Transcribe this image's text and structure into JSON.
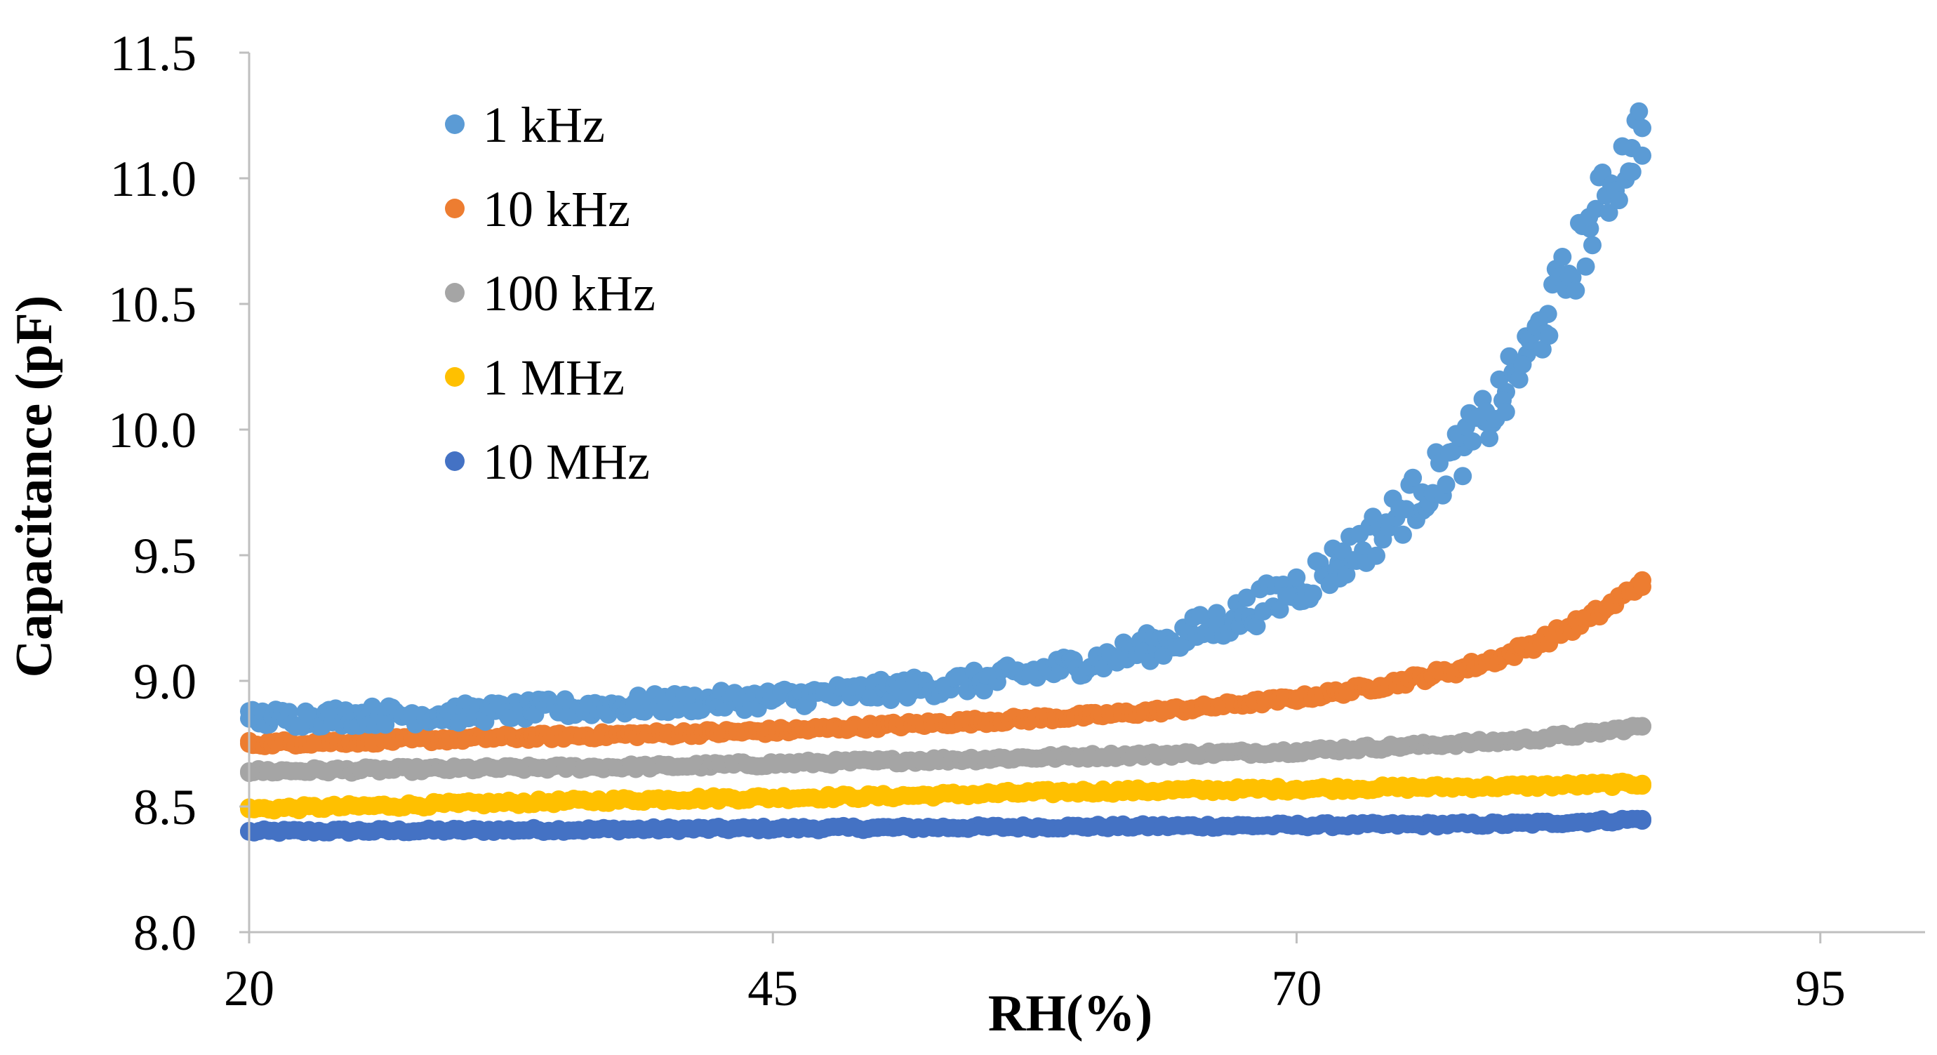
{
  "chart_data": {
    "type": "scatter",
    "title": "",
    "xlabel": "RH(%)",
    "ylabel": "Capacitance (pF)",
    "xlim": [
      20,
      100
    ],
    "ylim": [
      8.0,
      11.5
    ],
    "x_ticks": [
      20,
      45,
      70,
      95
    ],
    "x_tick_labels": [
      "20",
      "45",
      "70",
      "95"
    ],
    "y_ticks": [
      8.0,
      8.5,
      9.0,
      9.5,
      10.0,
      10.5,
      11.0,
      11.5
    ],
    "y_tick_labels": [
      "8.0",
      "8.5",
      "9.0",
      "9.5",
      "10.0",
      "10.5",
      "11.0",
      "11.5"
    ],
    "grid": false,
    "legend_position": "top-left",
    "series": [
      {
        "name": "1 kHz",
        "color": "#5B9BD5",
        "x": [
          20,
          25,
          30,
          35,
          40,
          45,
          50,
          55,
          58,
          61,
          64,
          67,
          70,
          72,
          74,
          76,
          78,
          79,
          80,
          81,
          82,
          83,
          84,
          85,
          86,
          86.5
        ],
        "y": [
          8.85,
          8.86,
          8.87,
          8.89,
          8.91,
          8.93,
          8.96,
          9.0,
          9.04,
          9.09,
          9.16,
          9.25,
          9.37,
          9.47,
          9.6,
          9.75,
          9.93,
          10.03,
          10.15,
          10.3,
          10.46,
          10.62,
          10.8,
          10.98,
          11.12,
          11.2
        ]
      },
      {
        "name": "10 kHz",
        "color": "#ED7D31",
        "x": [
          20,
          25,
          30,
          35,
          40,
          45,
          50,
          55,
          60,
          65,
          70,
          74,
          78,
          80,
          82,
          84,
          85,
          86,
          86.5
        ],
        "y": [
          8.75,
          8.76,
          8.77,
          8.78,
          8.79,
          8.8,
          8.82,
          8.84,
          8.86,
          8.89,
          8.93,
          8.98,
          9.05,
          9.1,
          9.17,
          9.25,
          9.3,
          9.36,
          9.4
        ]
      },
      {
        "name": "100 kHz",
        "color": "#A5A5A5",
        "x": [
          20,
          30,
          40,
          50,
          60,
          70,
          75,
          80,
          84,
          86.5
        ],
        "y": [
          8.64,
          8.65,
          8.66,
          8.68,
          8.7,
          8.72,
          8.74,
          8.76,
          8.79,
          8.82
        ]
      },
      {
        "name": "1 MHz",
        "color": "#FFC000",
        "x": [
          20,
          30,
          40,
          50,
          60,
          70,
          80,
          86.5
        ],
        "y": [
          8.49,
          8.51,
          8.53,
          8.54,
          8.56,
          8.57,
          8.58,
          8.59
        ]
      },
      {
        "name": "10 MHz",
        "color": "#4472C4",
        "x": [
          20,
          30,
          40,
          50,
          60,
          70,
          80,
          84,
          86.5
        ],
        "y": [
          8.4,
          8.405,
          8.41,
          8.415,
          8.42,
          8.425,
          8.43,
          8.44,
          8.45
        ]
      }
    ]
  }
}
